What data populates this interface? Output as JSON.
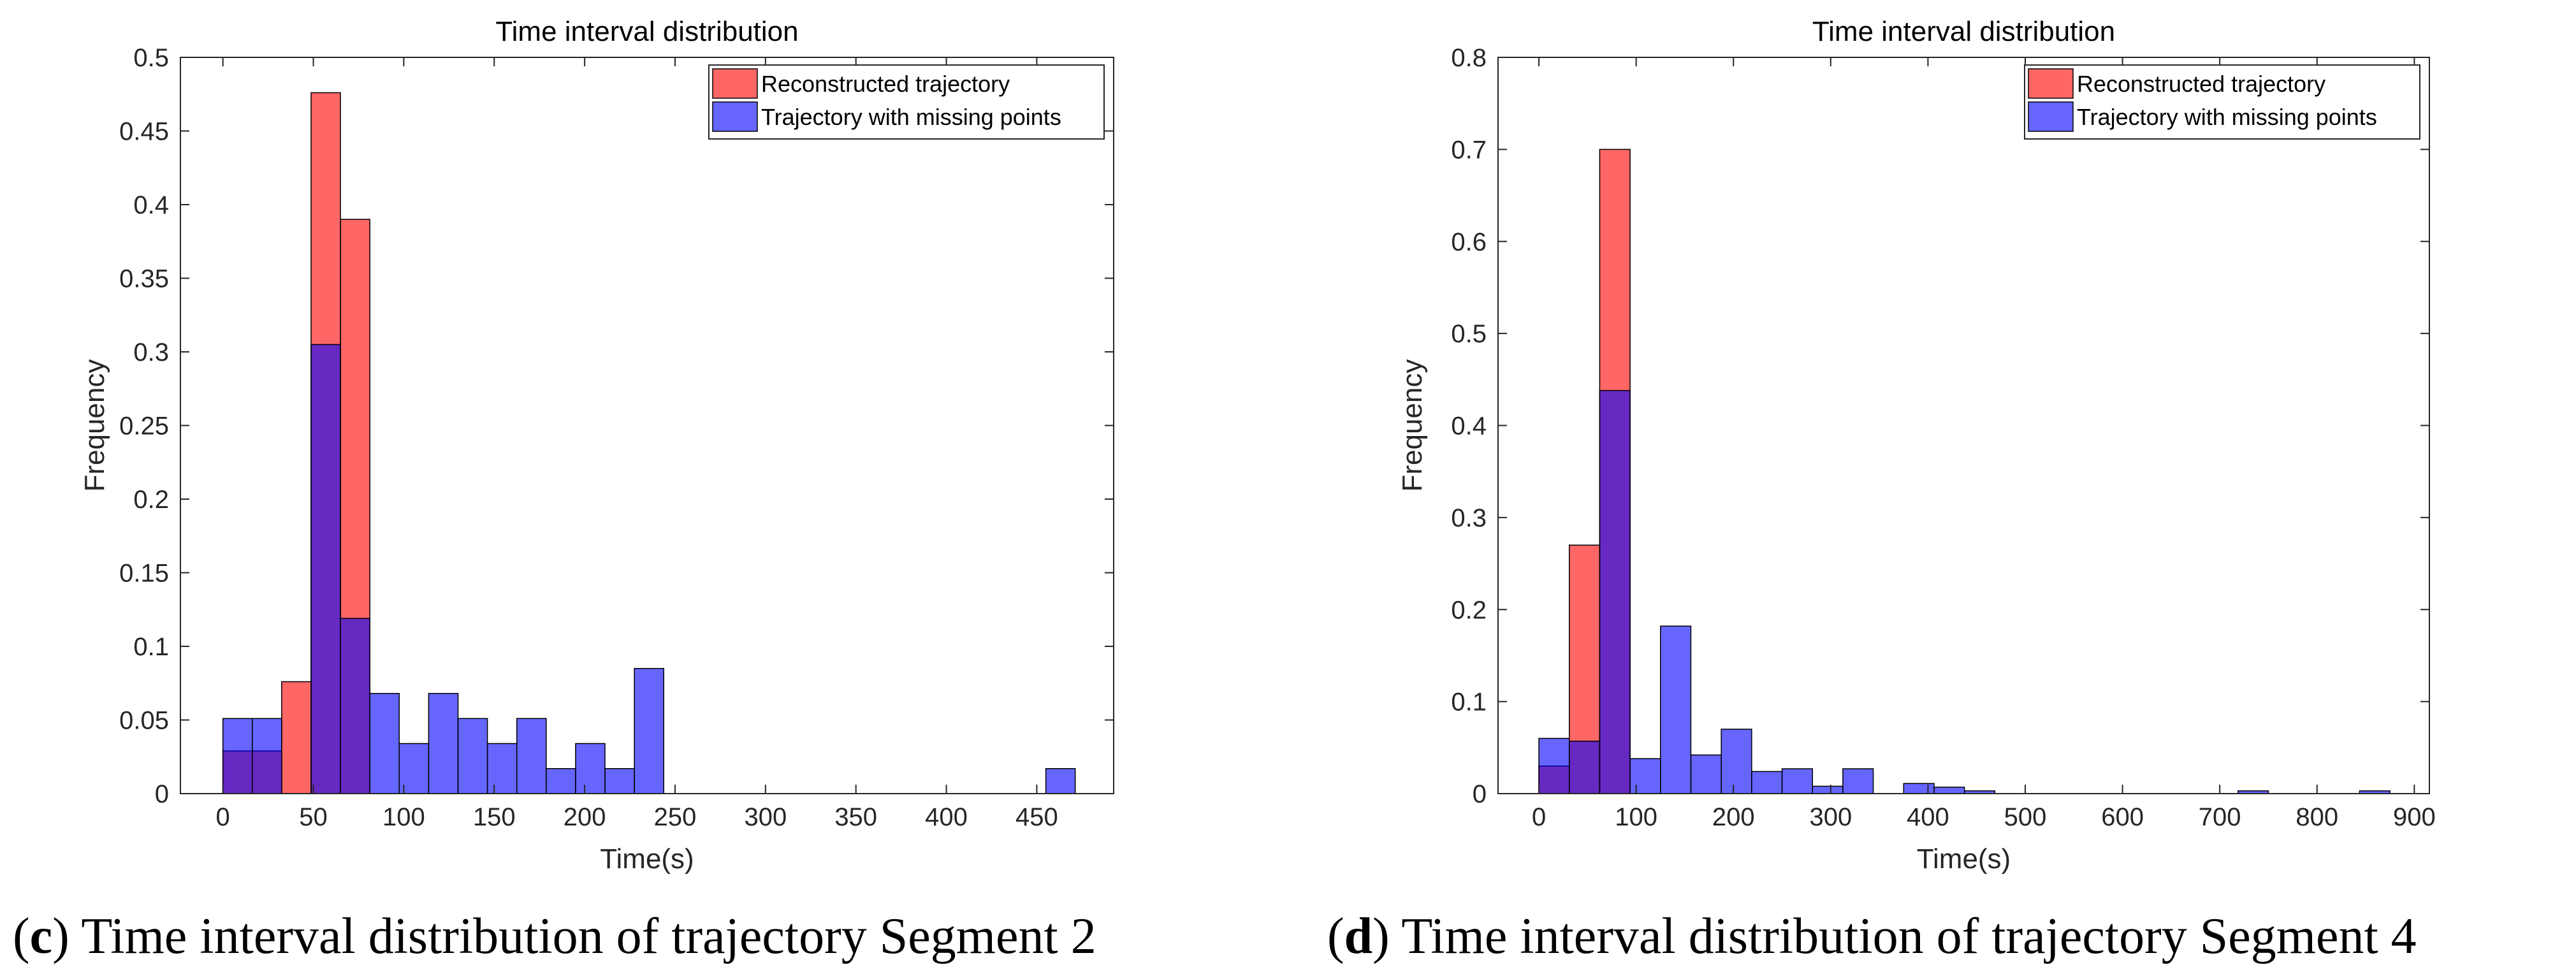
{
  "chart_data": [
    {
      "type": "histogram",
      "title": "Time interval distribution",
      "x_label": "Time(s)",
      "y_label": "Frequency",
      "caption": [
        "(",
        "c",
        ") Time interval distribution of trajectory Segment 2"
      ],
      "bins": [
        0,
        16.25,
        32.5,
        48.75,
        65,
        81.25,
        97.5,
        113.75,
        130,
        146.25,
        162.5,
        178.75,
        195,
        211.25,
        227.5,
        243.75,
        260,
        276.25,
        292.5,
        308.75,
        325,
        341.25,
        357.5,
        373.75,
        390,
        406.25,
        422.5,
        438.75,
        455,
        471.25
      ],
      "series": [
        {
          "name": "Reconstructed trajectory",
          "color": "#ff0000",
          "values": [
            0.029,
            0.029,
            0.076,
            0.476,
            0.39,
            0,
            0,
            0,
            0,
            0,
            0,
            0,
            0,
            0,
            0,
            0,
            0,
            0,
            0,
            0,
            0,
            0,
            0,
            0,
            0,
            0,
            0,
            0,
            0
          ]
        },
        {
          "name": "Trajectory with missing points",
          "color": "#0000ff",
          "values": [
            0.051,
            0.051,
            0,
            0.305,
            0.119,
            0.068,
            0.034,
            0.068,
            0.051,
            0.034,
            0.051,
            0.017,
            0.034,
            0.017,
            0.085,
            0,
            0,
            0,
            0,
            0,
            0,
            0,
            0,
            0,
            0,
            0,
            0,
            0,
            0.017
          ]
        }
      ],
      "face_alpha": 0.6,
      "legend": "top-right",
      "xlim": [
        -23.5,
        492.5
      ],
      "xticks": [
        0,
        50,
        100,
        150,
        200,
        250,
        300,
        350,
        400,
        450
      ],
      "ylim": [
        0,
        0.5
      ],
      "yticks": [
        0,
        0.05,
        0.1,
        0.15,
        0.2,
        0.25,
        0.3,
        0.35,
        0.4,
        0.45,
        0.5
      ]
    },
    {
      "type": "histogram",
      "title": "Time interval distribution",
      "x_label": "Time(s)",
      "y_label": "Frequency",
      "caption": [
        "(",
        "d",
        ") Time interval distribution of trajectory Segment 4"
      ],
      "bins": [
        0,
        31.25,
        62.5,
        93.75,
        125,
        156.25,
        187.5,
        218.75,
        250,
        281.25,
        312.5,
        343.75,
        375,
        406.25,
        437.5,
        468.75,
        500,
        531.25,
        562.5,
        593.75,
        625,
        656.25,
        687.5,
        718.75,
        750,
        781.25,
        812.5,
        843.75,
        875
      ],
      "series": [
        {
          "name": "Reconstructed trajectory",
          "color": "#ff0000",
          "values": [
            0.03,
            0.27,
            0.7,
            0,
            0,
            0,
            0,
            0,
            0,
            0,
            0,
            0,
            0,
            0,
            0,
            0,
            0,
            0,
            0,
            0,
            0,
            0,
            0,
            0,
            0,
            0,
            0,
            0
          ]
        },
        {
          "name": "Trajectory with missing points",
          "color": "#0000ff",
          "values": [
            0.06,
            0.057,
            0.438,
            0.038,
            0.182,
            0.042,
            0.07,
            0.024,
            0.027,
            0.008,
            0.027,
            0,
            0.011,
            0.007,
            0.003,
            0,
            0,
            0,
            0,
            0,
            0,
            0,
            0,
            0.003,
            0,
            0,
            0,
            0.003
          ]
        }
      ],
      "face_alpha": 0.6,
      "legend": "top-right",
      "xlim": [
        -42,
        915.5
      ],
      "xticks": [
        0,
        100,
        200,
        300,
        400,
        500,
        600,
        700,
        800,
        900
      ],
      "ylim": [
        0,
        0.8
      ],
      "yticks": [
        0,
        0.1,
        0.2,
        0.3,
        0.4,
        0.5,
        0.6,
        0.7,
        0.8
      ]
    }
  ]
}
